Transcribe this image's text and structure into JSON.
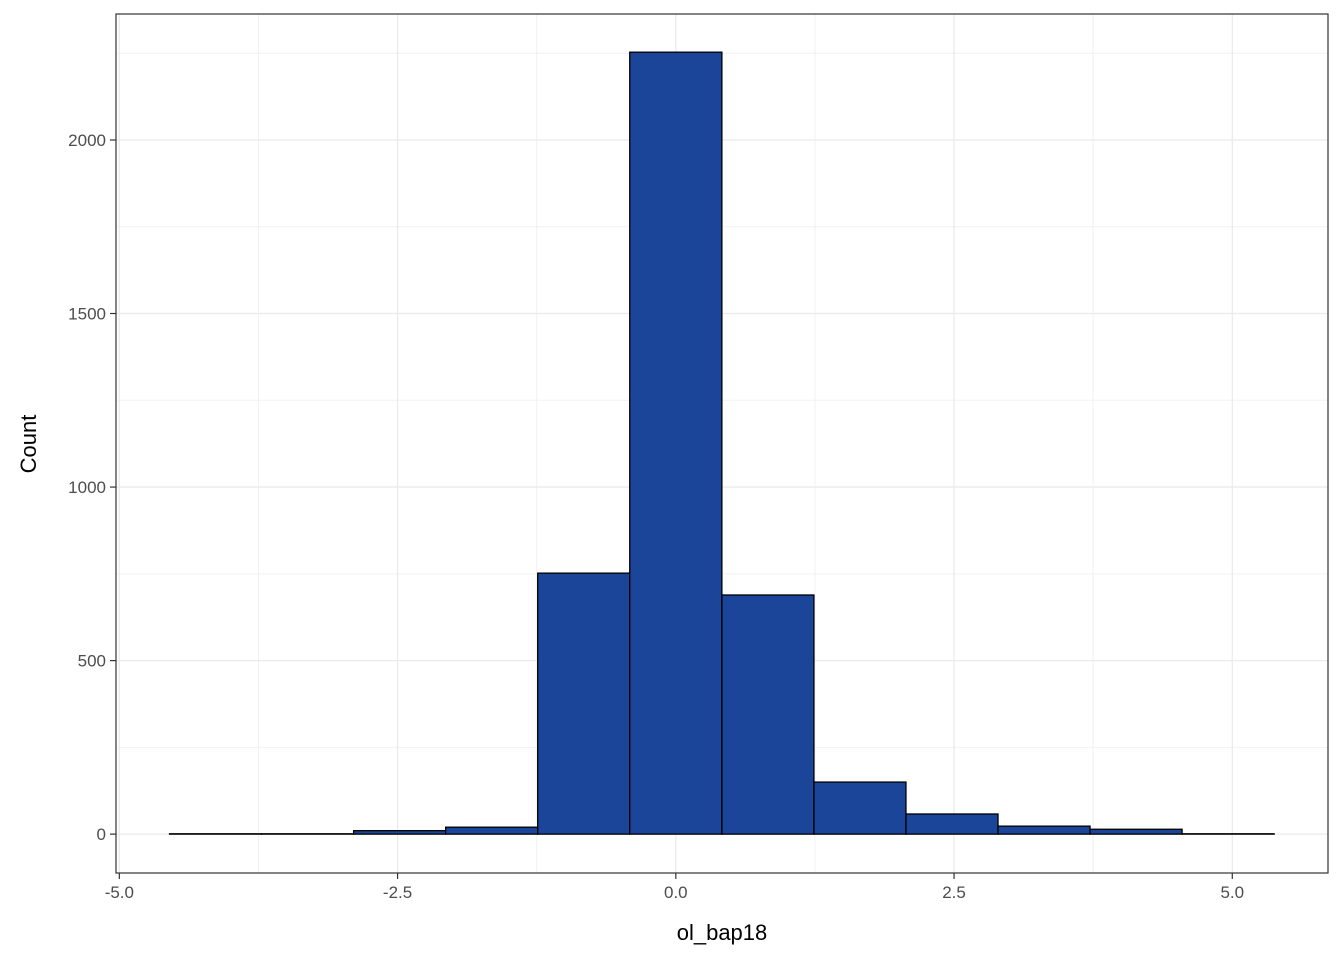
{
  "chart_data": {
    "type": "histogram",
    "x_label": "ol_bap18",
    "y_label": "Count",
    "bins": [
      -4.549,
      -3.722,
      -2.895,
      -2.068,
      -1.241,
      -0.414,
      0.414,
      1.241,
      2.068,
      2.895,
      3.722,
      4.549,
      5.376
    ],
    "counts": [
      1,
      1,
      10,
      20,
      752,
      2253,
      689,
      150,
      58,
      23,
      14,
      1
    ],
    "color": "#1a4599",
    "xlim": [
      -5.03,
      5.86
    ],
    "xticks": [
      -5.0,
      -2.5,
      0.0,
      2.5,
      5.0
    ],
    "xtick_labels": [
      "-5.0",
      "-2.5",
      "0.0",
      "2.5",
      "5.0"
    ],
    "minor_xticks": [
      -3.75,
      -1.25,
      1.25,
      3.75
    ],
    "ylim": [
      -112,
      2363
    ],
    "yticks": [
      0,
      500,
      1000,
      1500,
      2000
    ],
    "minor_yticks": [
      250,
      750,
      1250,
      1750,
      2250
    ],
    "grid": true
  }
}
